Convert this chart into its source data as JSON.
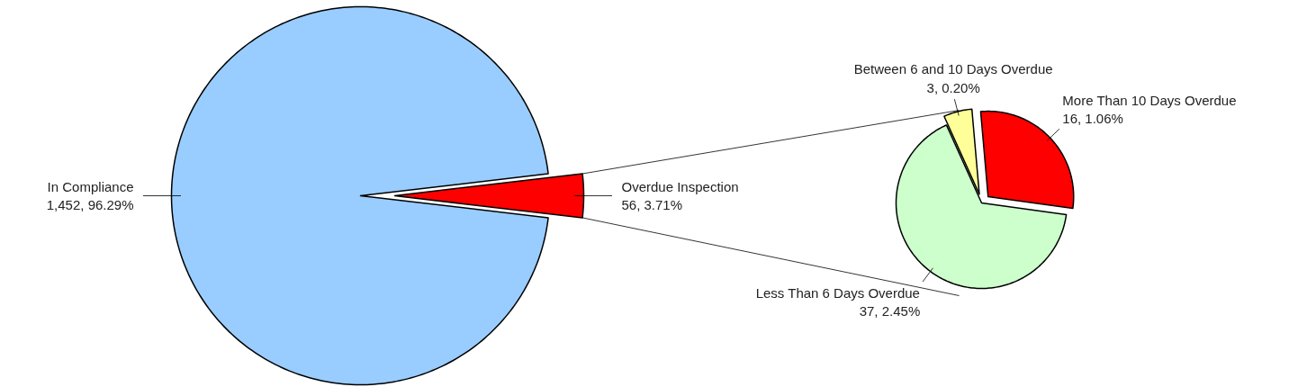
{
  "chart_data": [
    {
      "type": "pie",
      "categories": [
        "In Compliance",
        "Overdue Inspection"
      ],
      "values": [
        1452,
        56
      ],
      "colors": [
        "#99ccff",
        "#ff0000"
      ],
      "value_labels": [
        "1,452, 96.29%",
        "56, 3.71%"
      ]
    },
    {
      "type": "pie",
      "categories": [
        "More Than 10 Days Overdue",
        "Less Than 6 Days Overdue",
        "Between 6 and 10 Days Overdue"
      ],
      "values": [
        16,
        37,
        3
      ],
      "colors": [
        "#ff0000",
        "#ccffcc",
        "#ffff99"
      ],
      "value_labels": [
        "16, 1.06%",
        "37, 2.45%",
        "3, 0.20%"
      ]
    }
  ]
}
